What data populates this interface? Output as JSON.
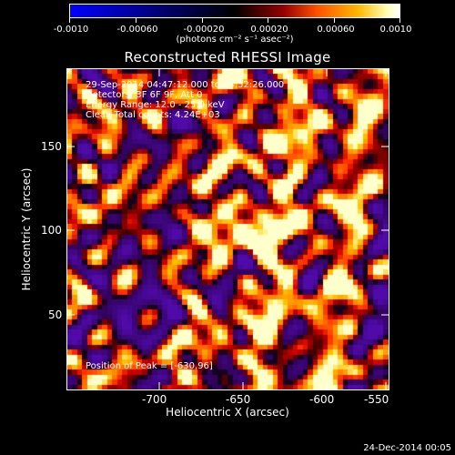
{
  "colorbar": {
    "ticks": [
      "-0.0010",
      "-0.00060",
      "-0.00020",
      "0.00020",
      "0.00060",
      "0.0010"
    ],
    "units": "(photons cm⁻² s⁻¹ asec⁻²)",
    "range": [
      -0.001,
      0.001
    ]
  },
  "title": "Reconstructed RHESSI Image",
  "info": {
    "line1": "29-Sep-2014 04:47:12.000 to 04:52:26.000",
    "line2": "Detectors: 3F 6F 9F, Att 0",
    "line3": "Energy Range: 12.0 - 25.0 keV",
    "line4": "Clean     Total counts: 4.24E+03",
    "peak": "Position of Peak = [-630,96]"
  },
  "xaxis": {
    "label": "Heliocentric X (arcsec)",
    "ticks": [
      "-700",
      "-650",
      "-600",
      "-550"
    ],
    "range": [
      -735,
      -545
    ]
  },
  "yaxis": {
    "label": "Heliocentric Y (arcsec)",
    "ticks": [
      "50",
      "100",
      "150"
    ],
    "range": [
      2,
      192
    ]
  },
  "date_stamp": "24-Dec-2014 00:05"
}
